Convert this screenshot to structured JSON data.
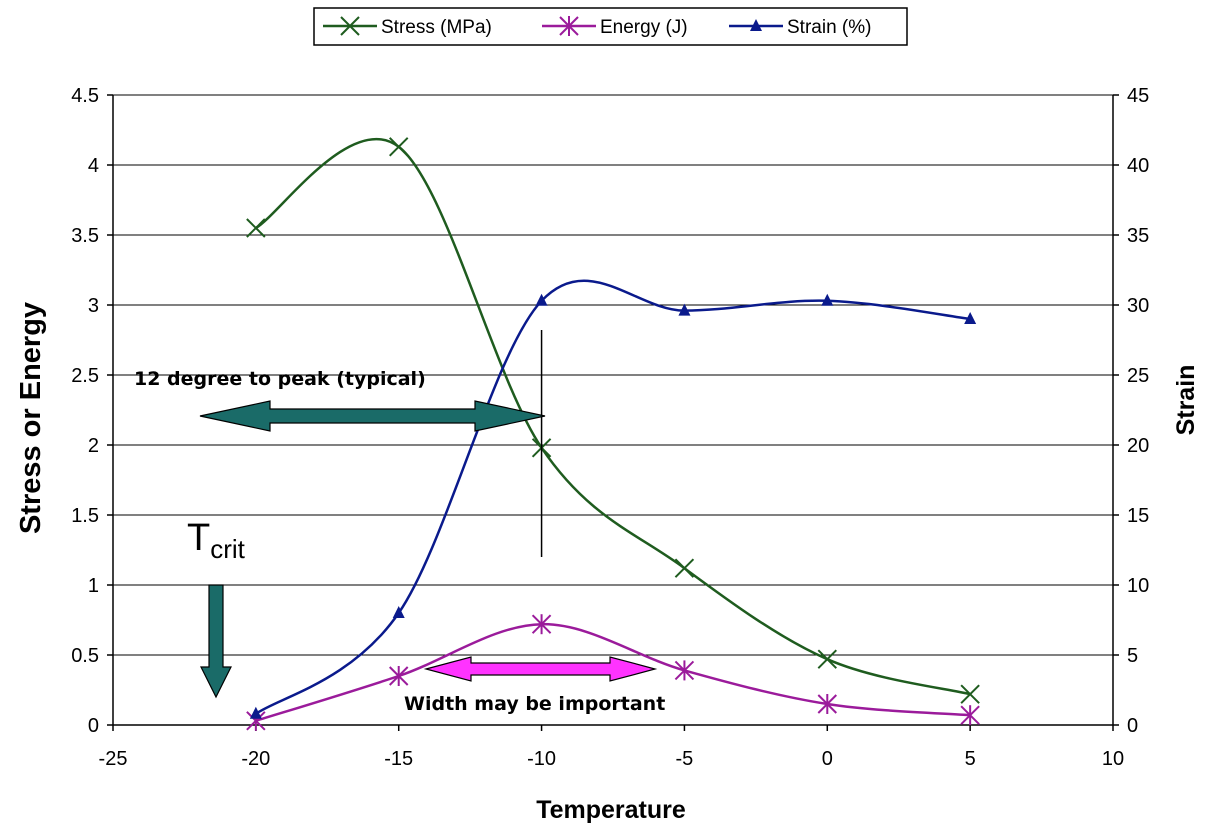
{
  "chart_data": {
    "type": "line",
    "xlabel": "Temperature",
    "ylabel": "Stress or Energy",
    "y2label": "Strain",
    "xlim": [
      -25,
      10
    ],
    "ylim": [
      0,
      4.5
    ],
    "y2lim": [
      0,
      45
    ],
    "grid": true,
    "legend_position": "top",
    "x_ticks": [
      "-25",
      "-20",
      "-15",
      "-10",
      "-5",
      "0",
      "5",
      "10"
    ],
    "y_ticks": [
      "0",
      "0.5",
      "1",
      "1.5",
      "2",
      "2.5",
      "3",
      "3.5",
      "4",
      "4.5"
    ],
    "y2_ticks": [
      "0",
      "5",
      "10",
      "15",
      "20",
      "25",
      "30",
      "35",
      "40",
      "45"
    ],
    "series": [
      {
        "name": "Stress (MPa)",
        "axis": "left",
        "marker": "x",
        "color": "#1f5c1f",
        "x": [
          -20,
          -15,
          -10,
          -5,
          0,
          5
        ],
        "values": [
          3.55,
          4.13,
          1.98,
          1.12,
          0.47,
          0.22
        ]
      },
      {
        "name": "Energy (J)",
        "axis": "left",
        "marker": "asterisk",
        "color": "#9b1b9b",
        "x": [
          -20,
          -15,
          -10,
          -5,
          0,
          5
        ],
        "values": [
          0.03,
          0.35,
          0.72,
          0.39,
          0.15,
          0.07
        ]
      },
      {
        "name": "Strain (%)",
        "axis": "right",
        "marker": "triangle",
        "color": "#0a1a8c",
        "x": [
          -20,
          -15,
          -10,
          -5,
          0,
          5
        ],
        "values": [
          0.8,
          8.0,
          30.3,
          29.6,
          30.3,
          29.0
        ]
      }
    ],
    "annotations": {
      "peak_text": "12 degree to peak (typical)",
      "width_text": "Width may be important",
      "tcrit_main": "T",
      "tcrit_sub": "crit"
    }
  },
  "colors": {
    "teal_arrow": "#1a6b68",
    "magenta_arrow": "#ff33ff"
  }
}
